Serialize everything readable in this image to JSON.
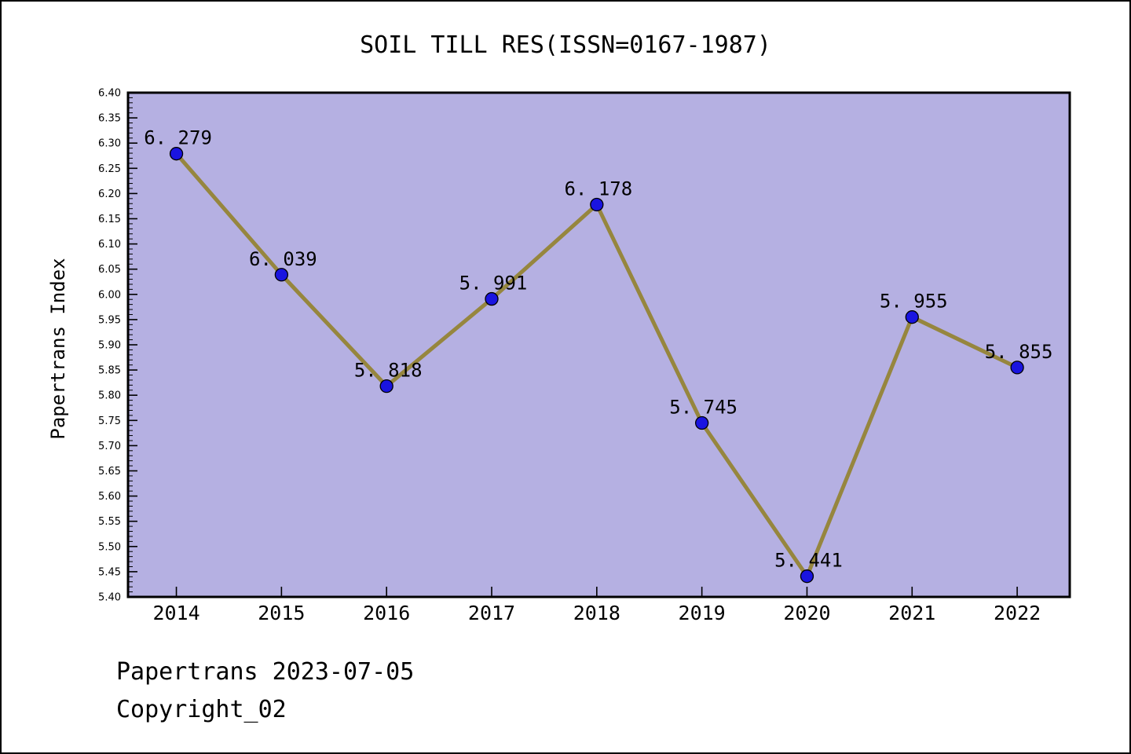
{
  "header": {
    "title": "SOIL TILL RES(ISSN=0167-1987)"
  },
  "footer": {
    "line1": "Papertrans 2023-07-05",
    "line2": "Copyright_02"
  },
  "chart_data": {
    "type": "line",
    "title": "SOIL TILL RES(ISSN=0167-1987)",
    "xlabel": "",
    "ylabel": "Papertrans Index",
    "categories": [
      2014,
      2015,
      2016,
      2017,
      2018,
      2019,
      2020,
      2021,
      2022
    ],
    "values": [
      6.279,
      6.039,
      5.818,
      5.991,
      6.178,
      5.745,
      5.441,
      5.955,
      5.855
    ],
    "point_labels": [
      "6. 279",
      "6. 039",
      "5. 818",
      "5. 991",
      "6. 178",
      "5. 745",
      "5. 441",
      "5. 955",
      "5. 855"
    ],
    "series_name": "Papertrans Index",
    "ylim": [
      5.4,
      6.4
    ],
    "xlim": [
      2013.54,
      2022.5
    ],
    "ytick_step": 0.05,
    "ytick_minor_step": 0.01,
    "ytick_label_format_decimals": 2,
    "grid": false,
    "legend": null,
    "colors": {
      "plot_bg": "#b5b0e2",
      "line": "#96863e",
      "marker": "#1a14e0",
      "marker_edge": "#000000",
      "axis": "#000000",
      "text": "#000000",
      "page_bg": "#ffffff",
      "border": "#000000"
    }
  }
}
